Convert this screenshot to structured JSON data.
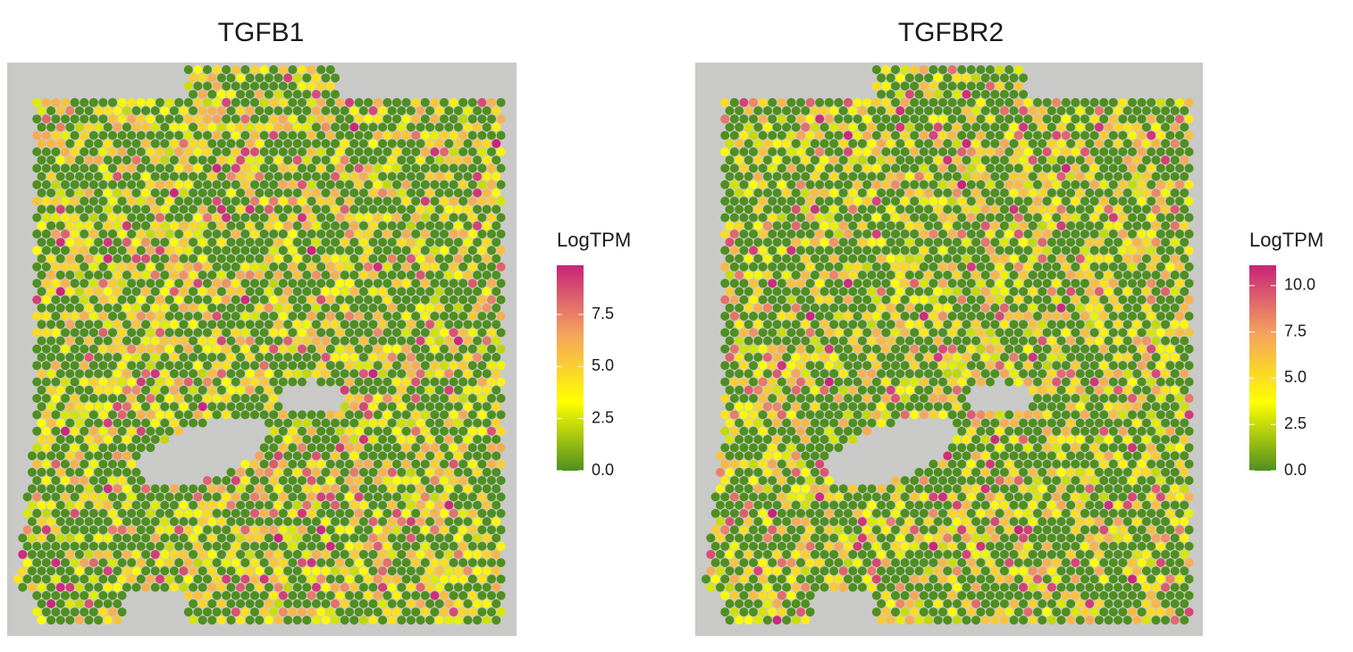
{
  "chart_data": [
    {
      "type": "spatial",
      "title": "TGFB1",
      "legend_title": "LogTPM",
      "colorbar_lim": [
        0,
        9.86
      ],
      "colorbar_ticks": [
        {
          "value": 0,
          "label": "0.0"
        },
        {
          "value": 2.5,
          "label": "2.5"
        },
        {
          "value": 5,
          "label": "5.0"
        },
        {
          "value": 7.5,
          "label": "7.5"
        }
      ],
      "colors": [
        "#4f8f1f",
        "#ffff00",
        "#f5a35e",
        "#c8237a"
      ]
    },
    {
      "type": "spatial",
      "title": "TGFBR2",
      "legend_title": "LogTPM",
      "colorbar_lim": [
        0,
        11.1
      ],
      "colorbar_ticks": [
        {
          "value": 0,
          "label": "0.0"
        },
        {
          "value": 2.5,
          "label": "2.5"
        },
        {
          "value": 5,
          "label": "5.0"
        },
        {
          "value": 7.5,
          "label": "7.5"
        },
        {
          "value": 10,
          "label": "10.0"
        }
      ],
      "colors": [
        "#4f8f1f",
        "#ffff00",
        "#f5a35e",
        "#c8237a"
      ]
    }
  ]
}
